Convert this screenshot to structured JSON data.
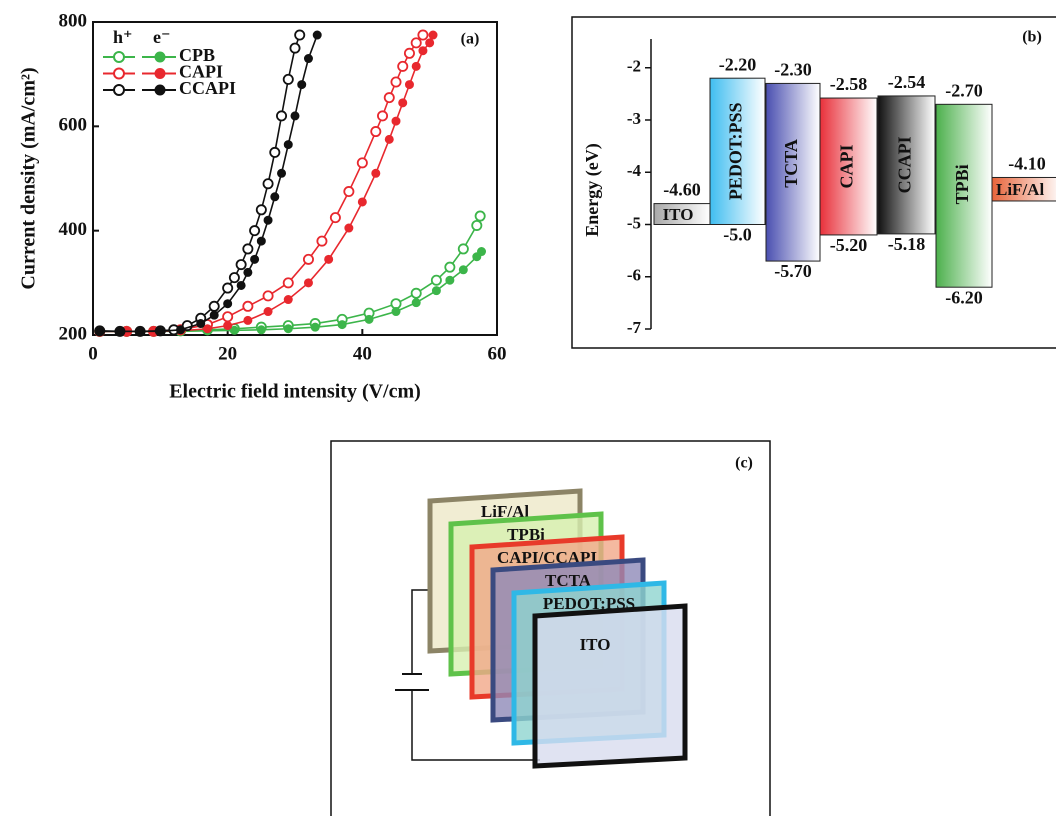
{
  "chart_data": [
    {
      "type": "line",
      "panel_label": "(a)",
      "xlabel": "Electric field intensity (V/cm)",
      "ylabel": "Current density (mA/cm²)",
      "xlim": [
        0,
        60
      ],
      "ylim": [
        200,
        800
      ],
      "xticks": [
        0,
        20,
        40,
        60
      ],
      "yticks": [
        200,
        400,
        600,
        800
      ],
      "legend_titles": [
        "h⁺",
        "e⁻"
      ],
      "series": [
        {
          "name": "CPB",
          "color": "#3cb54a",
          "hole": {
            "x": [
              1,
              5,
              9,
              13,
              17,
              21,
              25,
              29,
              33,
              37,
              41,
              45,
              48,
              51,
              53,
              55,
              57,
              57.5
            ],
            "values": [
              207,
              207,
              207,
              208,
              210,
              212,
              215,
              218,
              222,
              230,
              242,
              260,
              280,
              305,
              330,
              365,
              410,
              428
            ]
          },
          "electron": {
            "x": [
              1,
              5,
              9,
              13,
              17,
              21,
              25,
              29,
              33,
              37,
              41,
              45,
              48,
              51,
              53,
              55,
              57,
              57.7
            ],
            "values": [
              207,
              207,
              207,
              207,
              208,
              209,
              210,
              212,
              215,
              220,
              230,
              245,
              262,
              285,
              305,
              325,
              350,
              360
            ]
          }
        },
        {
          "name": "CAPI",
          "color": "#e8282e",
          "hole": {
            "x": [
              1,
              5,
              9,
              13,
              17,
              20,
              23,
              26,
              29,
              32,
              34,
              36,
              38,
              40,
              42,
              43,
              44,
              45,
              46,
              47,
              48,
              49
            ],
            "values": [
              207,
              207,
              207,
              210,
              220,
              235,
              255,
              275,
              300,
              345,
              380,
              425,
              475,
              530,
              590,
              620,
              655,
              685,
              715,
              740,
              760,
              775
            ]
          },
          "electron": {
            "x": [
              1,
              5,
              9,
              13,
              17,
              20,
              23,
              26,
              29,
              32,
              35,
              38,
              40,
              42,
              44,
              45,
              46,
              47,
              48,
              49,
              50,
              50.5
            ],
            "values": [
              207,
              207,
              207,
              208,
              212,
              218,
              228,
              245,
              268,
              300,
              345,
              405,
              455,
              510,
              575,
              610,
              645,
              680,
              715,
              745,
              760,
              775
            ]
          }
        },
        {
          "name": "CCAPI",
          "color": "#111111",
          "hole": {
            "x": [
              1,
              4,
              7,
              10,
              12,
              14,
              16,
              18,
              20,
              21,
              22,
              23,
              24,
              25,
              26,
              27,
              28,
              29,
              30,
              30.7
            ],
            "values": [
              208,
              207,
              207,
              208,
              210,
              218,
              232,
              255,
              290,
              310,
              335,
              365,
              400,
              440,
              490,
              550,
              620,
              690,
              750,
              775
            ]
          },
          "electron": {
            "x": [
              1,
              4,
              7,
              10,
              13,
              16,
              18,
              20,
              22,
              23,
              24,
              25,
              26,
              27,
              28,
              29,
              30,
              31,
              32,
              33.3
            ],
            "values": [
              207,
              207,
              207,
              207,
              210,
              222,
              238,
              260,
              295,
              320,
              345,
              380,
              420,
              465,
              510,
              565,
              620,
              680,
              730,
              775
            ]
          }
        }
      ]
    },
    {
      "type": "energy-level",
      "panel_label": "(b)",
      "ylabel": "Energy (eV)",
      "ylim": [
        -7,
        -1.45
      ],
      "yticks": [
        -2,
        -3,
        -4,
        -5,
        -6,
        -7
      ],
      "layers": [
        {
          "name": "ITO",
          "color": "#a8a8a8",
          "top": -4.6,
          "bottom": -5.0,
          "top_label": "-4.60"
        },
        {
          "name": "PEDOT:PSS",
          "color": "#3fbdf0",
          "top": -2.2,
          "bottom": -5.0,
          "top_label": "-2.20",
          "bottom_label": "-5.0"
        },
        {
          "name": "TCTA",
          "color": "#4a4fb0",
          "top": -2.3,
          "bottom": -5.7,
          "top_label": "-2.30",
          "bottom_label": "-5.70"
        },
        {
          "name": "CAPI",
          "color": "#e8303a",
          "top": -2.58,
          "bottom": -5.2,
          "top_label": "-2.58",
          "bottom_label": "-5.20"
        },
        {
          "name": "CCAPI",
          "color": "#111111",
          "top": -2.54,
          "bottom": -5.18,
          "top_label": "-2.54",
          "bottom_label": "-5.18"
        },
        {
          "name": "TPBi",
          "color": "#4cb04c",
          "top": -2.7,
          "bottom": -6.2,
          "top_label": "-2.70",
          "bottom_label": "-6.20"
        },
        {
          "name": "LiF/Al",
          "color": "#e8643a",
          "top": -4.1,
          "bottom": -4.55,
          "top_label": "-4.10"
        }
      ]
    }
  ],
  "diagram": {
    "panel_label": "(c)",
    "layers": [
      "LiF/Al",
      "TPBi",
      "CAPI/CCAPI",
      "TCTA",
      "PEDOT:PSS",
      "ITO"
    ]
  }
}
